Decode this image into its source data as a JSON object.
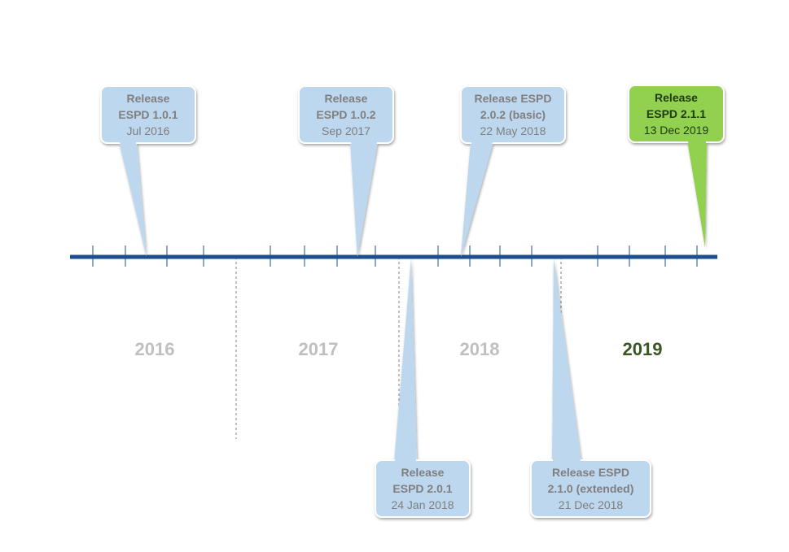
{
  "colors": {
    "axis": "#1f4e8c",
    "callout_blue_fill": "#bdd7ee",
    "callout_blue_text": "#7f7f7f",
    "callout_green_fill": "#92d050",
    "callout_green_text": "#1e3a0a",
    "year_inactive": "#bfbfbf",
    "year_active": "#385723",
    "separator": "#7f7f7f"
  },
  "years": [
    {
      "label": "2016",
      "active": false
    },
    {
      "label": "2017",
      "active": false
    },
    {
      "label": "2018",
      "active": false
    },
    {
      "label": "2019",
      "active": true
    }
  ],
  "releases": [
    {
      "line1": "Release",
      "line2": "ESPD 1.0.1",
      "date": "Jul 2016",
      "position": "above",
      "highlight": false
    },
    {
      "line1": "Release",
      "line2": "ESPD 1.0.2",
      "date": "Sep 2017",
      "position": "above",
      "highlight": false
    },
    {
      "line1": "Release ESPD",
      "line2": "2.0.2 (basic)",
      "date": "22 May 2018",
      "position": "above",
      "highlight": false
    },
    {
      "line1": "Release",
      "line2": "ESPD 2.1.1",
      "date": "13 Dec 2019",
      "position": "above",
      "highlight": true
    },
    {
      "line1": "Release",
      "line2": "ESPD 2.0.1",
      "date": "24 Jan 2018",
      "position": "below",
      "highlight": false
    },
    {
      "line1": "Release ESPD",
      "line2": "2.1.0 (extended)",
      "date": "21 Dec 2018",
      "position": "below",
      "highlight": false
    }
  ]
}
